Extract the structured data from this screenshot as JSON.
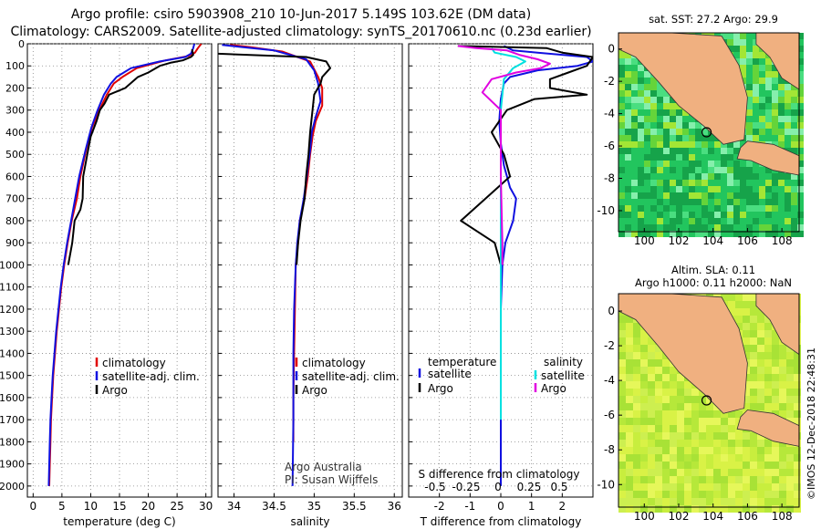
{
  "title_line1": "Argo profile: csiro 5903908_210 10-Jun-2017 5.149S 103.62E (DM data)",
  "title_line2": "Climatology: CARS2009. Satellite-adjusted climatology: synTS_20170610.nc (0.23d earlier)",
  "colors": {
    "climatology": "#e00000",
    "satellite": "#1010e0",
    "argo": "#000000",
    "salinity_satellite": "#00e0e0",
    "salinity_argo": "#e000e0",
    "land": "#f0b080",
    "sea_warm": "#a0e000",
    "sea_cool": "#00c040"
  },
  "chart_data": [
    {
      "type": "line",
      "title": "",
      "xlabel": "temperature (deg C)",
      "ylabel": "",
      "xlim": [
        -1,
        31
      ],
      "ylim": [
        2050,
        0
      ],
      "xticks": [
        "0",
        "5",
        "10",
        "15",
        "20",
        "25",
        "30"
      ],
      "yticks": [
        "0",
        "100",
        "200",
        "300",
        "400",
        "500",
        "600",
        "700",
        "800",
        "900",
        "1000",
        "1100",
        "1200",
        "1300",
        "1400",
        "1500",
        "1600",
        "1700",
        "1800",
        "1900",
        "2000"
      ],
      "legend": [
        "climatology",
        "satellite-adj. clim.",
        "Argo"
      ],
      "series": [
        {
          "name": "climatology",
          "color": "red",
          "points": [
            [
              29.2,
              0
            ],
            [
              28.6,
              20
            ],
            [
              28.1,
              40
            ],
            [
              27,
              55
            ],
            [
              23,
              75
            ],
            [
              18,
              110
            ],
            [
              15.5,
              150
            ],
            [
              14,
              180
            ],
            [
              12.8,
              230
            ],
            [
              11.5,
              300
            ],
            [
              10.2,
              380
            ],
            [
              9.2,
              480
            ],
            [
              8.2,
              600
            ],
            [
              7.6,
              700
            ],
            [
              6.7,
              800
            ],
            [
              6,
              900
            ],
            [
              5.4,
              1000
            ],
            [
              4.9,
              1100
            ],
            [
              4.5,
              1200
            ],
            [
              4.1,
              1300
            ],
            [
              3.8,
              1400
            ],
            [
              3.5,
              1500
            ],
            [
              3.3,
              1600
            ],
            [
              3.1,
              1700
            ],
            [
              3.0,
              1800
            ],
            [
              2.9,
              1900
            ],
            [
              2.8,
              2000
            ]
          ]
        },
        {
          "name": "satellite-adj. clim.",
          "color": "blue",
          "points": [
            [
              28,
              0
            ],
            [
              27.8,
              20
            ],
            [
              27.4,
              45
            ],
            [
              26.4,
              60
            ],
            [
              22,
              80
            ],
            [
              17,
              110
            ],
            [
              14.5,
              150
            ],
            [
              13.5,
              180
            ],
            [
              12.3,
              230
            ],
            [
              11.2,
              300
            ],
            [
              10.1,
              380
            ],
            [
              9.1,
              480
            ],
            [
              8,
              600
            ],
            [
              7.3,
              700
            ],
            [
              6.6,
              800
            ],
            [
              5.9,
              900
            ],
            [
              5.3,
              1000
            ],
            [
              4.8,
              1100
            ],
            [
              4.4,
              1200
            ],
            [
              4,
              1300
            ],
            [
              3.7,
              1400
            ],
            [
              3.4,
              1500
            ],
            [
              3.2,
              1600
            ],
            [
              3,
              1700
            ],
            [
              2.9,
              1800
            ],
            [
              2.8,
              1900
            ],
            [
              2.7,
              2000
            ]
          ]
        },
        {
          "name": "Argo",
          "color": "black",
          "points": [
            [
              27.6,
              25
            ],
            [
              27.8,
              50
            ],
            [
              27.4,
              60
            ],
            [
              26,
              75
            ],
            [
              24,
              85
            ],
            [
              22,
              100
            ],
            [
              20,
              130
            ],
            [
              18.2,
              150
            ],
            [
              16,
              200
            ],
            [
              13.2,
              230
            ],
            [
              12.4,
              270
            ],
            [
              11.6,
              300
            ],
            [
              11,
              350
            ],
            [
              10,
              420
            ],
            [
              9.4,
              500
            ],
            [
              8.7,
              600
            ],
            [
              8.6,
              700
            ],
            [
              8.2,
              750
            ],
            [
              7.2,
              800
            ],
            [
              6.8,
              900
            ],
            [
              6.1,
              1000
            ]
          ]
        }
      ]
    },
    {
      "type": "line",
      "title": "",
      "xlabel": "salinity",
      "ylabel": "",
      "xlim": [
        33.8,
        36.1
      ],
      "ylim": [
        2050,
        0
      ],
      "xticks": [
        "34",
        "34.5",
        "35",
        "35.5",
        "36"
      ],
      "legend": [
        "climatology",
        "satellite-adj. clim.",
        "Argo"
      ],
      "annotation": [
        "Argo Australia",
        "PI: Susan Wijffels"
      ],
      "series": [
        {
          "name": "climatology",
          "color": "red",
          "points": [
            [
              33.95,
              5
            ],
            [
              34.2,
              15
            ],
            [
              34.6,
              35
            ],
            [
              34.95,
              80
            ],
            [
              35.05,
              150
            ],
            [
              35.1,
              200
            ],
            [
              35.1,
              280
            ],
            [
              35.02,
              350
            ],
            [
              34.98,
              420
            ],
            [
              34.95,
              500
            ],
            [
              34.92,
              600
            ],
            [
              34.88,
              700
            ],
            [
              34.82,
              800
            ],
            [
              34.8,
              900
            ],
            [
              34.77,
              1000
            ],
            [
              34.76,
              1200
            ],
            [
              34.75,
              1400
            ],
            [
              34.74,
              1600
            ],
            [
              34.74,
              1800
            ]
          ]
        },
        {
          "name": "satellite-adj. clim.",
          "color": "blue",
          "points": [
            [
              33.85,
              5
            ],
            [
              34.1,
              15
            ],
            [
              34.5,
              30
            ],
            [
              34.9,
              70
            ],
            [
              35,
              120
            ],
            [
              35.05,
              180
            ],
            [
              35.08,
              260
            ],
            [
              35.02,
              330
            ],
            [
              34.97,
              400
            ],
            [
              34.95,
              480
            ],
            [
              34.92,
              560
            ],
            [
              34.9,
              620
            ],
            [
              34.87,
              700
            ],
            [
              34.82,
              800
            ],
            [
              34.79,
              900
            ],
            [
              34.77,
              1000
            ],
            [
              34.75,
              1200
            ],
            [
              34.74,
              1400
            ],
            [
              34.74,
              1700
            ],
            [
              34.73,
              2000
            ]
          ]
        },
        {
          "name": "Argo",
          "color": "black",
          "points": [
            [
              33.8,
              45
            ],
            [
              34.5,
              55
            ],
            [
              34.9,
              60
            ],
            [
              35.15,
              80
            ],
            [
              35.2,
              110
            ],
            [
              35.1,
              150
            ],
            [
              35.08,
              180
            ],
            [
              35,
              230
            ],
            [
              34.98,
              300
            ],
            [
              34.95,
              400
            ],
            [
              34.93,
              500
            ],
            [
              34.9,
              600
            ],
            [
              34.88,
              700
            ],
            [
              34.83,
              800
            ],
            [
              34.8,
              900
            ],
            [
              34.78,
              1000
            ]
          ]
        }
      ]
    },
    {
      "type": "line",
      "title": "",
      "xlabel": "T difference from climatology",
      "xlabel_top": "S difference from climatology",
      "ylabel": "",
      "xlim": [
        -3,
        3
      ],
      "ylim": [
        2050,
        0
      ],
      "xticks_bottom": [
        "-2",
        "-1",
        "0",
        "1",
        "2"
      ],
      "xticks_top": [
        "-0.5",
        "-0.25",
        "0",
        "0.25",
        "0.5"
      ],
      "legend": {
        "temperature": [
          "satellite",
          "Argo"
        ],
        "salinity": [
          "satellite",
          "Argo"
        ]
      },
      "series": [
        {
          "name": "temperature satellite",
          "color": "blue",
          "points": [
            [
              0.1,
              10
            ],
            [
              0.4,
              30
            ],
            [
              1.2,
              40
            ],
            [
              2.8,
              60
            ],
            [
              3,
              80
            ],
            [
              2.5,
              100
            ],
            [
              1.2,
              120
            ],
            [
              0.3,
              150
            ],
            [
              0.1,
              180
            ],
            [
              0,
              250
            ],
            [
              -0.05,
              350
            ],
            [
              0,
              450
            ],
            [
              0.1,
              550
            ],
            [
              0.3,
              650
            ],
            [
              0.5,
              700
            ],
            [
              0.4,
              800
            ],
            [
              0.15,
              900
            ],
            [
              0.05,
              1000
            ],
            [
              0,
              1200
            ],
            [
              0,
              1500
            ],
            [
              0,
              1800
            ],
            [
              0,
              2000
            ]
          ]
        },
        {
          "name": "temperature Argo",
          "color": "black",
          "points": [
            [
              -1.4,
              10
            ],
            [
              1.5,
              20
            ],
            [
              2,
              40
            ],
            [
              3,
              60
            ],
            [
              2.8,
              100
            ],
            [
              2.2,
              130
            ],
            [
              1.6,
              160
            ],
            [
              1.6,
              200
            ],
            [
              2.8,
              230
            ],
            [
              1.1,
              250
            ],
            [
              0.2,
              300
            ],
            [
              -0.3,
              400
            ],
            [
              0.1,
              500
            ],
            [
              0.3,
              600
            ],
            [
              -0.5,
              700
            ],
            [
              -1.3,
              800
            ],
            [
              -0.2,
              900
            ],
            [
              0,
              1000
            ]
          ]
        },
        {
          "name": "salinity satellite",
          "color": "cyan",
          "points": [
            [
              -0.3,
              20
            ],
            [
              -0.2,
              40
            ],
            [
              0.5,
              60
            ],
            [
              0.8,
              80
            ],
            [
              0.4,
              110
            ],
            [
              0.1,
              160
            ],
            [
              0,
              300
            ],
            [
              0,
              500
            ],
            [
              0,
              800
            ],
            [
              0,
              1000
            ],
            [
              0,
              1400
            ],
            [
              0,
              1700
            ]
          ]
        },
        {
          "name": "salinity Argo",
          "color": "magenta",
          "points": [
            [
              -1.4,
              10
            ],
            [
              -0.8,
              20
            ],
            [
              0.2,
              30
            ],
            [
              0.6,
              50
            ],
            [
              1.2,
              70
            ],
            [
              1.6,
              90
            ],
            [
              1.3,
              110
            ],
            [
              0.5,
              130
            ],
            [
              -0.3,
              160
            ],
            [
              -0.6,
              220
            ],
            [
              0,
              300
            ],
            [
              0,
              600
            ],
            [
              0.05,
              900
            ],
            [
              0.05,
              1000
            ]
          ]
        }
      ]
    },
    {
      "type": "heatmap",
      "title": "sat. SST: 27.2 Argo: 29.9",
      "xticks": [
        "100",
        "102",
        "104",
        "106",
        "108"
      ],
      "yticks": [
        "0",
        "-2",
        "-4",
        "-6",
        "-8",
        "-10"
      ],
      "xlim": [
        98.5,
        109
      ],
      "ylim": [
        -11.3,
        1
      ]
    },
    {
      "type": "heatmap",
      "title": "Altim. SLA: 0.11",
      "subtitle": "Argo h1000: 0.11 h2000: NaN",
      "xticks": [
        "100",
        "102",
        "104",
        "106",
        "108"
      ],
      "yticks": [
        "0",
        "-2",
        "-4",
        "-6",
        "-8",
        "-10"
      ],
      "xlim": [
        98.5,
        109
      ],
      "ylim": [
        -11.3,
        1
      ]
    }
  ],
  "footer_stamp": "©IMOS 12-Dec-2018 22:48:31"
}
